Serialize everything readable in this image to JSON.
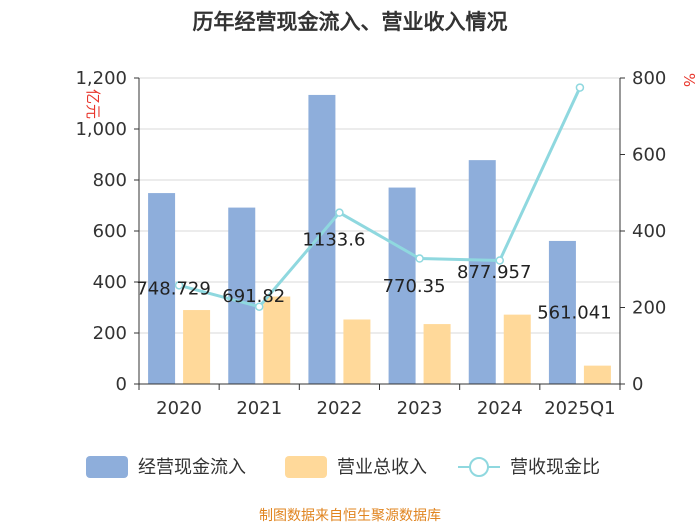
{
  "chart_data": {
    "type": "bar",
    "title": "历年经营现金流入、营业收入情况",
    "categories": [
      "2020",
      "2021",
      "2022",
      "2023",
      "2024",
      "2025Q1"
    ],
    "left_axis": {
      "unit": "亿元",
      "min": 0,
      "max": 1200,
      "ticks": [
        "0",
        "200",
        "400",
        "600",
        "800",
        "1,000",
        "1,200"
      ]
    },
    "right_axis": {
      "unit": "%",
      "min": 0,
      "max": 800,
      "ticks": [
        "0",
        "200",
        "400",
        "600",
        "800"
      ]
    },
    "series": [
      {
        "name": "经营现金流入",
        "type": "bar",
        "axis": "left",
        "color": "#8eaedb",
        "values": [
          748.729,
          691.82,
          1133.6,
          770.35,
          877.957,
          561.041
        ],
        "labels": [
          "748.729",
          "691.82",
          "1133.6",
          "770.35",
          "877.957",
          "561.041"
        ]
      },
      {
        "name": "营业总收入",
        "type": "bar",
        "axis": "left",
        "color": "#ffd99a",
        "values": [
          290,
          343,
          253,
          235,
          272,
          72
        ]
      },
      {
        "name": "营收现金比",
        "type": "line",
        "axis": "right",
        "color": "#8fd8df",
        "values": [
          258,
          202,
          448,
          328,
          323,
          775
        ]
      }
    ],
    "legend_position": "bottom",
    "grid": true
  },
  "source": "制图数据来自恒生聚源数据库"
}
